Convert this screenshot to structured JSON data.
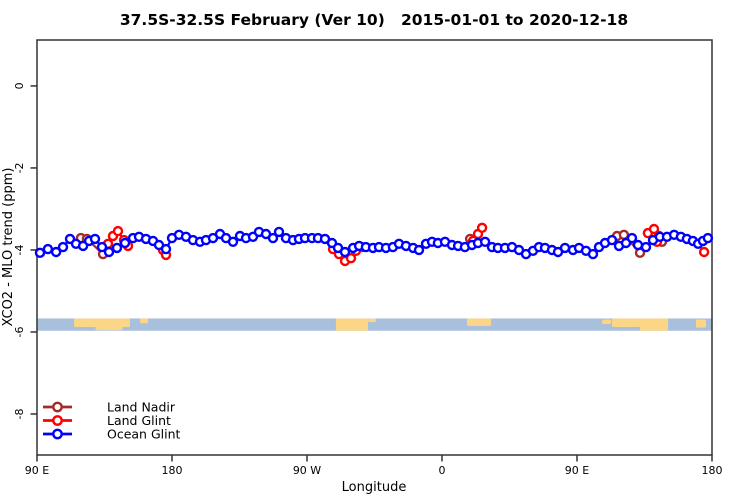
{
  "chart_data": {
    "type": "line",
    "title": "37.5S-32.5S February (Ver 10)   2015-01-01 to 2020-12-18",
    "xlabel": "Longitude",
    "ylabel": "XCO2 - MLO trend (ppm)",
    "xlim": [
      90,
      540
    ],
    "ylim": [
      -9.0,
      1.12
    ],
    "grid": false,
    "x_ticks": [
      {
        "value": 90,
        "label": "90 E"
      },
      {
        "value": 180,
        "label": "180"
      },
      {
        "value": 270,
        "label": "90 W"
      },
      {
        "value": 360,
        "label": "0"
      },
      {
        "value": 450,
        "label": "90 E"
      },
      {
        "value": 540,
        "label": "180"
      }
    ],
    "y_ticks": [
      {
        "value": 0,
        "label": "0"
      },
      {
        "value": -2,
        "label": "-2"
      },
      {
        "value": -4,
        "label": "-4"
      },
      {
        "value": -6,
        "label": "-6"
      },
      {
        "value": -8,
        "label": "-8"
      }
    ],
    "legend": {
      "position": "bottom-left",
      "entries": [
        {
          "label": "Land Nadir",
          "color": "#A52A2A"
        },
        {
          "label": "Land Glint",
          "color": "#FF0000"
        },
        {
          "label": "Ocean Glint",
          "color": "#0000FF"
        }
      ]
    },
    "map_band": {
      "description": "land/ocean strip for latitude band 37.5S-32.5S",
      "y_top": -5.67,
      "y_bottom": -5.97,
      "ocean_color": "#a9c0dd",
      "land_color": "#fbd687",
      "land_patches": [
        {
          "lon1": 114.7,
          "lon2": 152.0,
          "top": 0.0,
          "bottom": 0.7
        },
        {
          "lon1": 129.0,
          "lon2": 147.0,
          "top": 0.55,
          "bottom": 0.95
        },
        {
          "lon1": 158.7,
          "lon2": 164.0,
          "top": 0.0,
          "bottom": 0.4
        },
        {
          "lon1": 289.3,
          "lon2": 310.7,
          "top": 0.0,
          "bottom": 1.0
        },
        {
          "lon1": 310.7,
          "lon2": 316.0,
          "top": 0.0,
          "bottom": 0.3
        },
        {
          "lon1": 376.7,
          "lon2": 392.7,
          "top": 0.0,
          "bottom": 0.6
        },
        {
          "lon1": 466.7,
          "lon2": 472.7,
          "top": 0.1,
          "bottom": 0.45
        },
        {
          "lon1": 473.3,
          "lon2": 492.0,
          "top": 0.0,
          "bottom": 0.7
        },
        {
          "lon1": 492.0,
          "lon2": 510.7,
          "top": 0.0,
          "bottom": 1.0
        },
        {
          "lon1": 529.3,
          "lon2": 536.0,
          "top": 0.1,
          "bottom": 0.75
        }
      ]
    },
    "series": [
      {
        "name": "Land Nadir",
        "color": "#A52A2A",
        "marker": "open-circle",
        "points": [
          [
            119.3,
            -3.71
          ],
          [
            123.3,
            -3.73
          ],
          [
            134.0,
            -4.1
          ],
          [
            306.7,
            -3.93
          ],
          [
            378.7,
            -3.73
          ],
          [
            476.7,
            -3.66
          ],
          [
            481.3,
            -3.63
          ],
          [
            492.0,
            -4.07
          ],
          [
            506.7,
            -3.8
          ]
        ]
      },
      {
        "name": "Land Glint",
        "color": "#FF0000",
        "marker": "open-circle",
        "points": [
          [
            137.3,
            -3.85
          ],
          [
            140.7,
            -3.66
          ],
          [
            144.0,
            -3.54
          ],
          [
            148.0,
            -3.76
          ],
          [
            150.7,
            -3.9
          ],
          [
            174.0,
            -4.0
          ],
          [
            176.0,
            -4.12
          ],
          [
            287.3,
            -3.98
          ],
          [
            291.3,
            -4.1
          ],
          [
            295.3,
            -4.27
          ],
          [
            299.3,
            -4.2
          ],
          [
            302.7,
            -4.02
          ],
          [
            380.7,
            -3.78
          ],
          [
            384.0,
            -3.61
          ],
          [
            386.7,
            -3.46
          ],
          [
            497.3,
            -3.59
          ],
          [
            501.3,
            -3.49
          ],
          [
            503.3,
            -3.8
          ],
          [
            504.7,
            -3.66
          ],
          [
            534.7,
            -4.05
          ]
        ]
      },
      {
        "name": "Ocean Glint",
        "color": "#0000FF",
        "marker": "open-circle",
        "points": [
          [
            92.0,
            -4.07
          ],
          [
            97.3,
            -3.98
          ],
          [
            102.7,
            -4.05
          ],
          [
            107.3,
            -3.93
          ],
          [
            112.0,
            -3.73
          ],
          [
            116.0,
            -3.85
          ],
          [
            120.7,
            -3.9
          ],
          [
            124.7,
            -3.78
          ],
          [
            128.7,
            -3.73
          ],
          [
            133.3,
            -3.93
          ],
          [
            138.0,
            -4.05
          ],
          [
            143.3,
            -3.95
          ],
          [
            148.7,
            -3.83
          ],
          [
            154.0,
            -3.71
          ],
          [
            158.0,
            -3.68
          ],
          [
            162.7,
            -3.73
          ],
          [
            167.3,
            -3.78
          ],
          [
            171.3,
            -3.88
          ],
          [
            176.0,
            -3.98
          ],
          [
            180.0,
            -3.71
          ],
          [
            184.7,
            -3.63
          ],
          [
            189.3,
            -3.68
          ],
          [
            194.0,
            -3.76
          ],
          [
            198.7,
            -3.8
          ],
          [
            202.7,
            -3.76
          ],
          [
            207.3,
            -3.71
          ],
          [
            212.0,
            -3.61
          ],
          [
            216.0,
            -3.71
          ],
          [
            220.7,
            -3.8
          ],
          [
            225.3,
            -3.66
          ],
          [
            229.3,
            -3.71
          ],
          [
            234.0,
            -3.68
          ],
          [
            238.0,
            -3.56
          ],
          [
            242.7,
            -3.61
          ],
          [
            247.3,
            -3.71
          ],
          [
            251.3,
            -3.56
          ],
          [
            256.0,
            -3.71
          ],
          [
            260.7,
            -3.76
          ],
          [
            264.7,
            -3.73
          ],
          [
            268.7,
            -3.71
          ],
          [
            273.3,
            -3.71
          ],
          [
            277.3,
            -3.71
          ],
          [
            282.0,
            -3.73
          ],
          [
            286.7,
            -3.83
          ],
          [
            290.7,
            -3.95
          ],
          [
            295.3,
            -4.05
          ],
          [
            300.7,
            -3.95
          ],
          [
            304.7,
            -3.9
          ],
          [
            309.3,
            -3.93
          ],
          [
            314.0,
            -3.95
          ],
          [
            318.0,
            -3.93
          ],
          [
            322.7,
            -3.95
          ],
          [
            327.3,
            -3.93
          ],
          [
            331.3,
            -3.85
          ],
          [
            336.0,
            -3.9
          ],
          [
            340.7,
            -3.95
          ],
          [
            344.7,
            -4.0
          ],
          [
            349.3,
            -3.85
          ],
          [
            353.3,
            -3.8
          ],
          [
            357.3,
            -3.83
          ],
          [
            362.0,
            -3.8
          ],
          [
            366.7,
            -3.88
          ],
          [
            370.7,
            -3.9
          ],
          [
            375.3,
            -3.93
          ],
          [
            380.0,
            -3.88
          ],
          [
            384.0,
            -3.83
          ],
          [
            388.7,
            -3.8
          ],
          [
            393.3,
            -3.93
          ],
          [
            397.3,
            -3.95
          ],
          [
            402.0,
            -3.95
          ],
          [
            406.7,
            -3.93
          ],
          [
            411.3,
            -4.0
          ],
          [
            416.0,
            -4.1
          ],
          [
            420.7,
            -4.02
          ],
          [
            424.7,
            -3.93
          ],
          [
            428.7,
            -3.95
          ],
          [
            433.3,
            -4.0
          ],
          [
            437.3,
            -4.05
          ],
          [
            442.0,
            -3.95
          ],
          [
            447.3,
            -4.0
          ],
          [
            451.3,
            -3.95
          ],
          [
            456.0,
            -4.02
          ],
          [
            460.7,
            -4.1
          ],
          [
            464.7,
            -3.93
          ],
          [
            468.7,
            -3.83
          ],
          [
            473.3,
            -3.76
          ],
          [
            478.0,
            -3.9
          ],
          [
            482.7,
            -3.83
          ],
          [
            486.7,
            -3.71
          ],
          [
            490.7,
            -3.88
          ],
          [
            496.0,
            -3.93
          ],
          [
            500.7,
            -3.76
          ],
          [
            505.3,
            -3.68
          ],
          [
            510.0,
            -3.68
          ],
          [
            514.7,
            -3.63
          ],
          [
            519.3,
            -3.68
          ],
          [
            523.3,
            -3.73
          ],
          [
            527.3,
            -3.78
          ],
          [
            530.7,
            -3.85
          ],
          [
            534.0,
            -3.78
          ],
          [
            537.3,
            -3.71
          ]
        ]
      }
    ]
  }
}
